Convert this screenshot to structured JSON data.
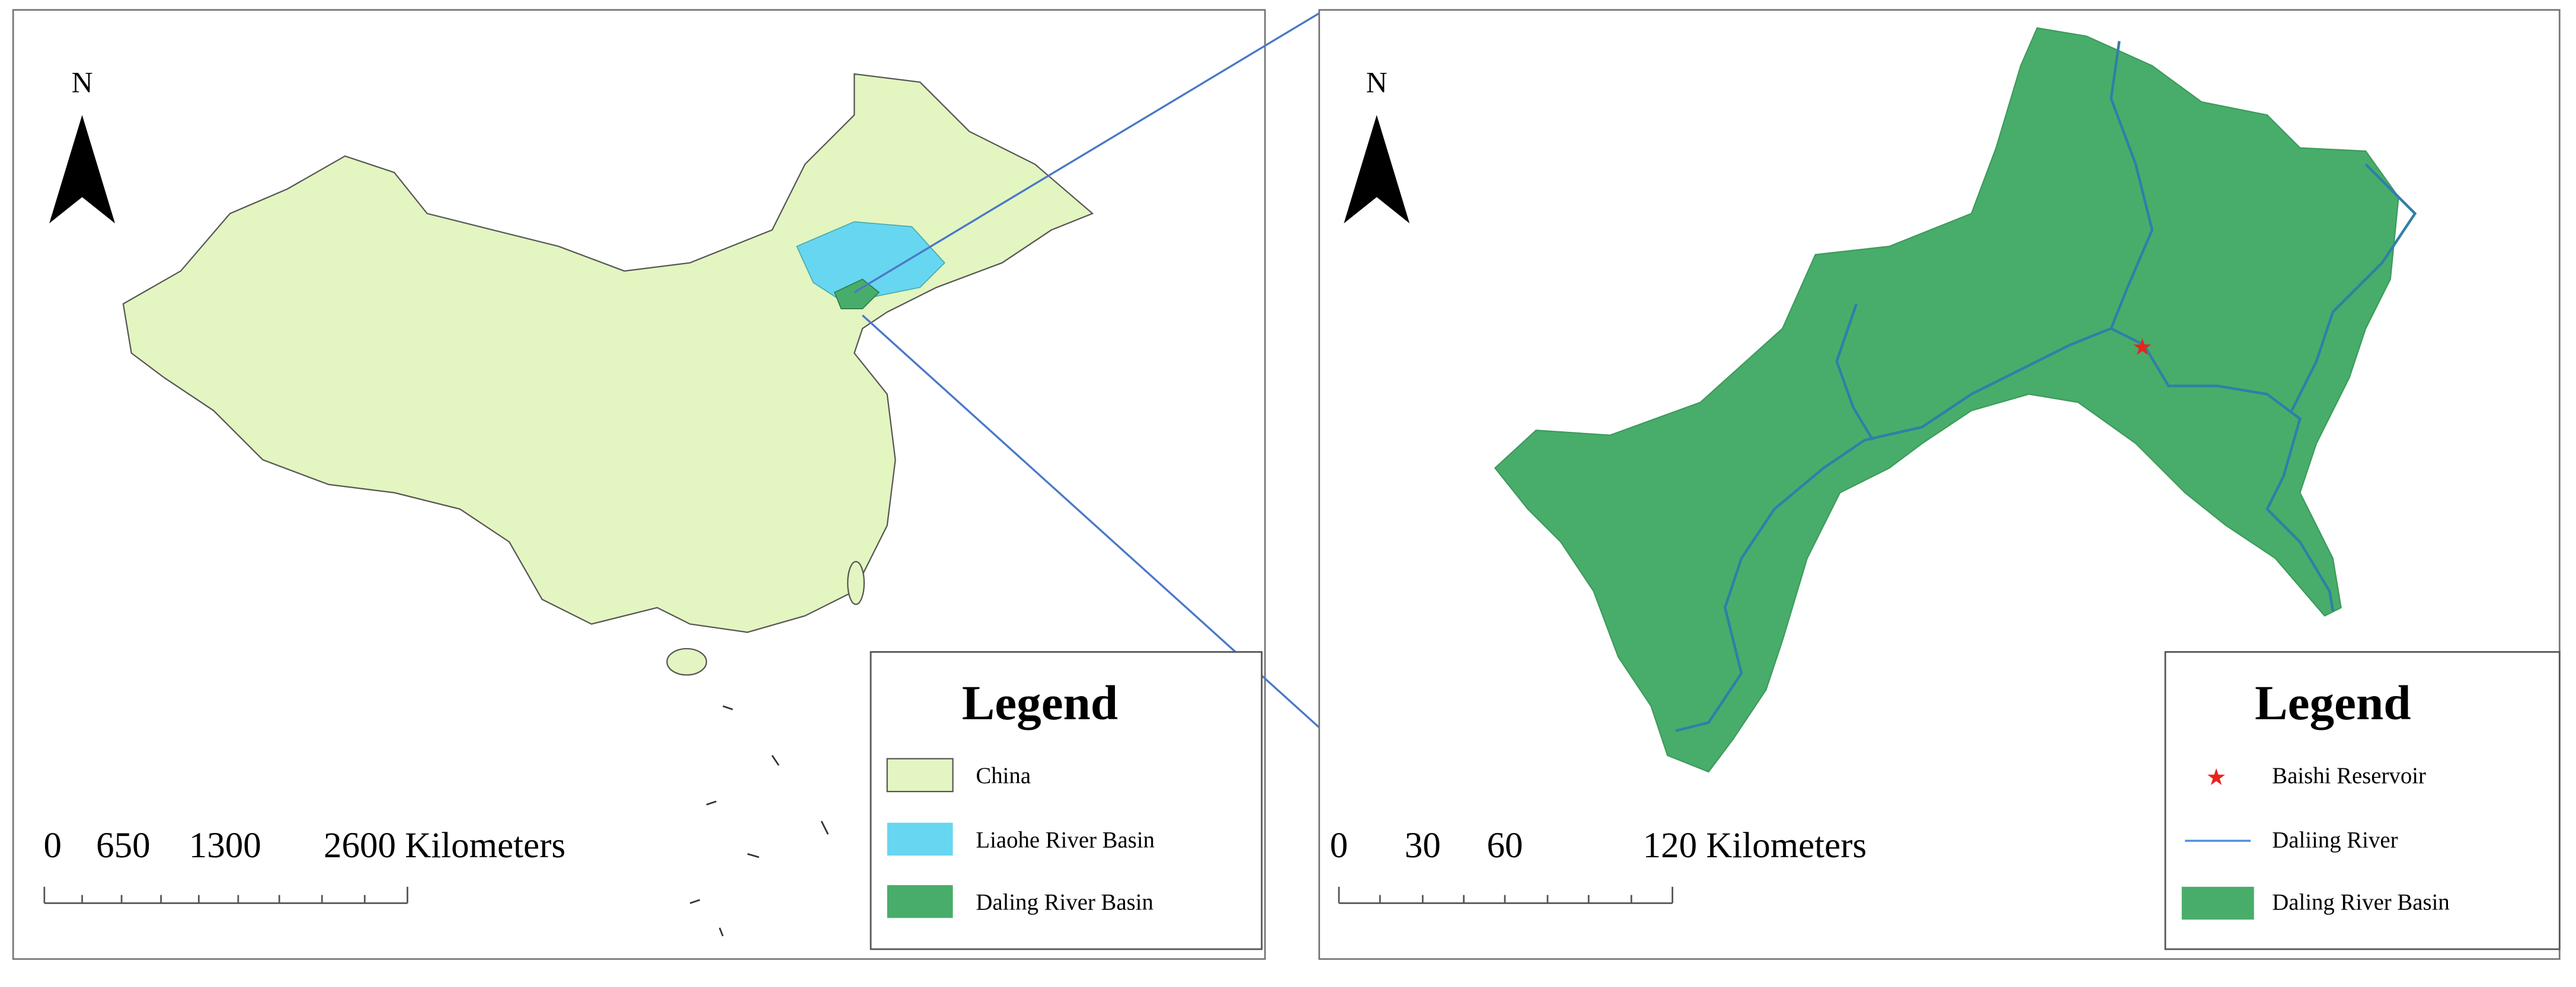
{
  "left_map": {
    "north": "N",
    "scale_bar": {
      "labels": [
        "0",
        "650",
        "1300",
        "2600 Kilometers"
      ]
    },
    "legend": {
      "title": "Legend",
      "items": [
        "China",
        "Liaohe River Basin",
        "Daling River Basin"
      ]
    }
  },
  "right_map": {
    "north": "N",
    "scale_bar": {
      "labels": [
        "0",
        "30",
        "60",
        "120 Kilometers"
      ]
    },
    "legend": {
      "title": "Legend",
      "items": [
        "Baishi Reservoir",
        "Daliing River",
        "Daling River Basin"
      ]
    }
  }
}
